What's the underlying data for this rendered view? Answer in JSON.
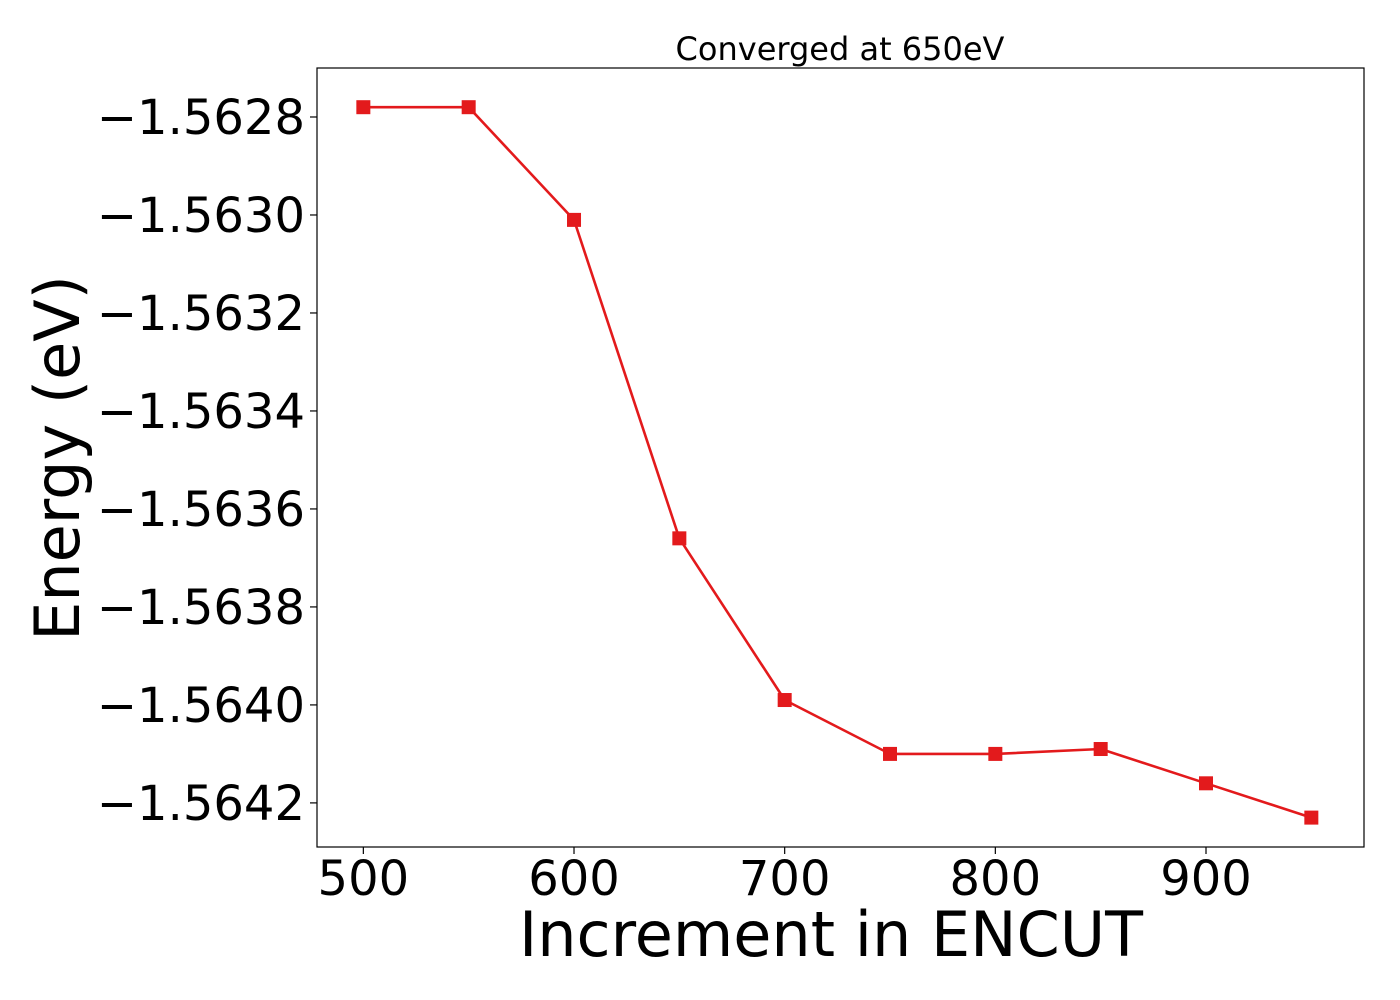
{
  "chart_data": {
    "type": "line",
    "title": "Converged at 650eV",
    "xlabel": "Increment in ENCUT",
    "ylabel": "Energy (eV)",
    "xlim": [
      478,
      975
    ],
    "ylim": [
      -1.56429,
      -1.5627
    ],
    "xticks": [
      500,
      600,
      700,
      800,
      900
    ],
    "xtick_labels": [
      "500",
      "600",
      "700",
      "800",
      "900"
    ],
    "yticks": [
      -1.5628,
      -1.563,
      -1.5632,
      -1.5634,
      -1.5636,
      -1.5638,
      -1.564,
      -1.5642
    ],
    "ytick_labels": [
      "−1.5628",
      "−1.5630",
      "−1.5632",
      "−1.5634",
      "−1.5636",
      "−1.5638",
      "−1.5640",
      "−1.5642"
    ],
    "grid": false,
    "series": [
      {
        "color": "#e31a1c",
        "marker": "square",
        "x": [
          500,
          550,
          600,
          650,
          700,
          750,
          800,
          850,
          900,
          950
        ],
        "y": [
          -1.56278,
          -1.56278,
          -1.56301,
          -1.56366,
          -1.56399,
          -1.5641,
          -1.5641,
          -1.56409,
          -1.56416,
          -1.56423
        ]
      }
    ]
  }
}
